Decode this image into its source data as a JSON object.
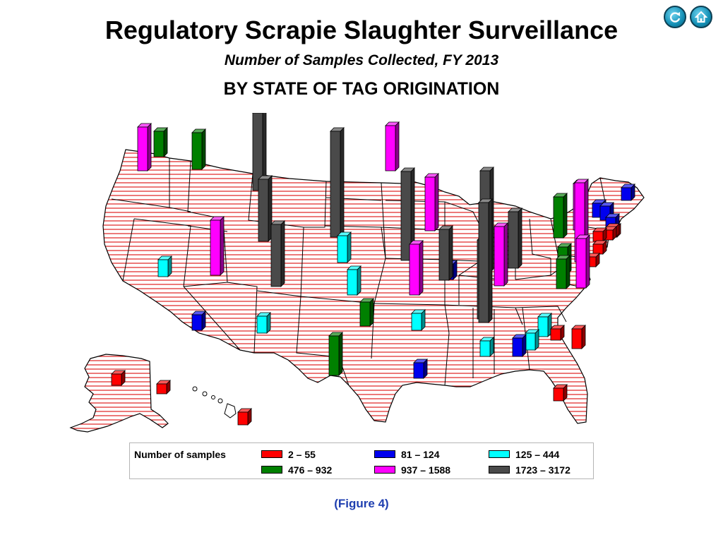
{
  "header": {
    "title": "Regulatory Scrapie Slaughter Surveillance",
    "subtitle": "Number of Samples Collected, FY 2013",
    "subtitle2": "BY STATE OF TAG ORIGINATION"
  },
  "nav": {
    "refresh_icon": "refresh-icon",
    "home_icon": "home-icon"
  },
  "legend": {
    "title": "Number of samples",
    "items": [
      {
        "label": "2  –  55",
        "color": "#ff0000"
      },
      {
        "label": "81  –  124",
        "color": "#0000ee"
      },
      {
        "label": "125  –  444",
        "color": "#00ffff"
      },
      {
        "label": "476  –  932",
        "color": "#008000"
      },
      {
        "label": "937  –  1588",
        "color": "#ff00ff"
      },
      {
        "label": "1723  –  3172",
        "color": "#4a4a4a"
      }
    ]
  },
  "caption": "(Figure 4)",
  "colors": {
    "hatch": "#e02020",
    "outline": "#000000"
  }
}
